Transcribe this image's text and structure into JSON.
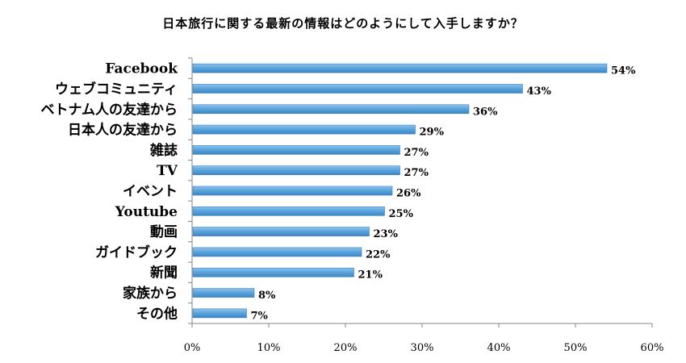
{
  "chart_data": {
    "type": "bar",
    "orientation": "horizontal",
    "title": "日本旅行に関する最新の情報はどのようにして入手しますか？",
    "categories": [
      "Facebook",
      "ウェブコミュニティ",
      "ベトナム人の友達から",
      "日本人の友達から",
      "雑誌",
      "TV",
      "イベント",
      "Youtube",
      "動画",
      "ガイドブック",
      "新聞",
      "家族から",
      "その他"
    ],
    "values": [
      54,
      43,
      36,
      29,
      27,
      27,
      26,
      25,
      23,
      22,
      21,
      8,
      7
    ],
    "value_labels": [
      "54%",
      "43%",
      "36%",
      "29%",
      "27%",
      "27%",
      "26%",
      "25%",
      "23%",
      "22%",
      "21%",
      "8%",
      "7%"
    ],
    "xlim": [
      0,
      60
    ],
    "xticks": [
      "0%",
      "10%",
      "20%",
      "30%",
      "40%",
      "50%",
      "60%"
    ],
    "grid": false,
    "bar_color": "#5DA5DC"
  }
}
